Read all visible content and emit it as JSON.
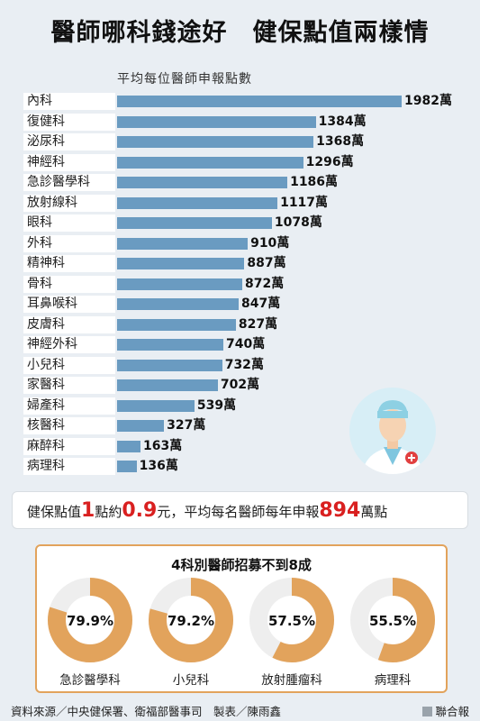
{
  "title": "醫師哪科錢途好　健保點值兩樣情",
  "subtitle": "平均每位醫師申報點數",
  "unit": "萬",
  "chart_data": [
    {
      "type": "bar",
      "orientation": "horizontal",
      "title": "平均每位醫師申報點數",
      "unit": "萬",
      "categories": [
        "內科",
        "復健科",
        "泌尿科",
        "神經科",
        "急診醫學科",
        "放射線科",
        "眼科",
        "外科",
        "精神科",
        "骨科",
        "耳鼻喉科",
        "皮膚科",
        "神經外科",
        "小兒科",
        "家醫科",
        "婦產科",
        "核醫科",
        "麻醉科",
        "病理科"
      ],
      "values": [
        1982,
        1384,
        1368,
        1296,
        1186,
        1117,
        1078,
        910,
        887,
        872,
        847,
        827,
        740,
        732,
        702,
        539,
        327,
        163,
        136
      ],
      "color": "#6a9bc1"
    },
    {
      "type": "pie",
      "title": "4科別醫師招募不到8成",
      "categories": [
        "急診醫學科",
        "小兒科",
        "放射腫瘤科",
        "病理科"
      ],
      "values": [
        79.9,
        79.2,
        57.5,
        55.5
      ],
      "labels": [
        "79.9%",
        "79.2%",
        "57.5%",
        "55.5%"
      ],
      "color": "#e2a35c",
      "remainder_color": "#eeeeee"
    }
  ],
  "info": {
    "part1": "健保點值",
    "v1": "1",
    "part2": "點約",
    "v2": "0.9",
    "part3": "元，平均每名醫師每年申報",
    "v3": "894",
    "part4": "萬點"
  },
  "footer": {
    "source": "資料來源／中央健保署、衛福部醫事司　製表／陳雨鑫",
    "brand": "聯合報"
  }
}
